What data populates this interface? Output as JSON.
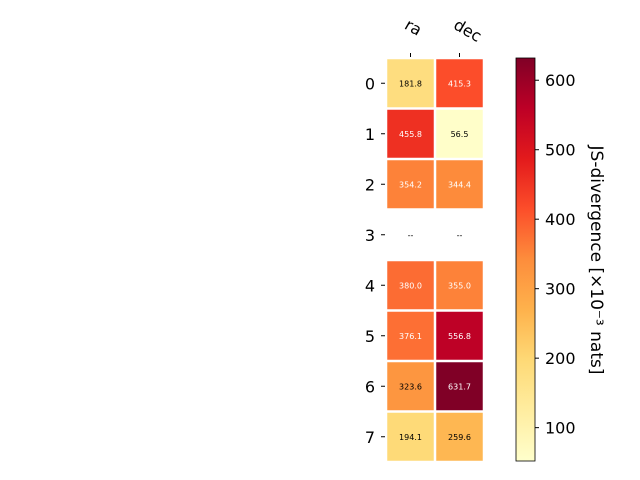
{
  "chart_data": {
    "type": "heatmap",
    "columns": [
      "ra",
      "dec"
    ],
    "rows": [
      "0",
      "1",
      "2",
      "3",
      "4",
      "5",
      "6",
      "7"
    ],
    "values": [
      [
        181.8,
        415.3
      ],
      [
        455.8,
        56.5
      ],
      [
        354.2,
        344.4
      ],
      [
        null,
        null
      ],
      [
        380.0,
        355.0
      ],
      [
        376.1,
        556.8
      ],
      [
        323.6,
        631.7
      ],
      [
        194.1,
        259.6
      ]
    ],
    "cell_labels": [
      [
        "181.8",
        "415.3"
      ],
      [
        "455.8",
        "56.5"
      ],
      [
        "354.2",
        "344.4"
      ],
      [
        "--",
        "--"
      ],
      [
        "380.0",
        "355.0"
      ],
      [
        "376.1",
        "556.8"
      ],
      [
        "323.6",
        "631.7"
      ],
      [
        "194.1",
        "259.6"
      ]
    ],
    "colorbar": {
      "label": "JS-divergence [×10⁻³ nats]",
      "range": [
        52,
        632
      ],
      "ticks": [
        100,
        200,
        300,
        400,
        500,
        600
      ],
      "tick_labels": [
        "100",
        "200",
        "300",
        "400",
        "500",
        "600"
      ],
      "colormap": "YlOrRd"
    },
    "grid": false,
    "colors": {
      "missing_cell": "#ffffff",
      "cell_border": "#ffffff",
      "axis": "#000000"
    }
  }
}
